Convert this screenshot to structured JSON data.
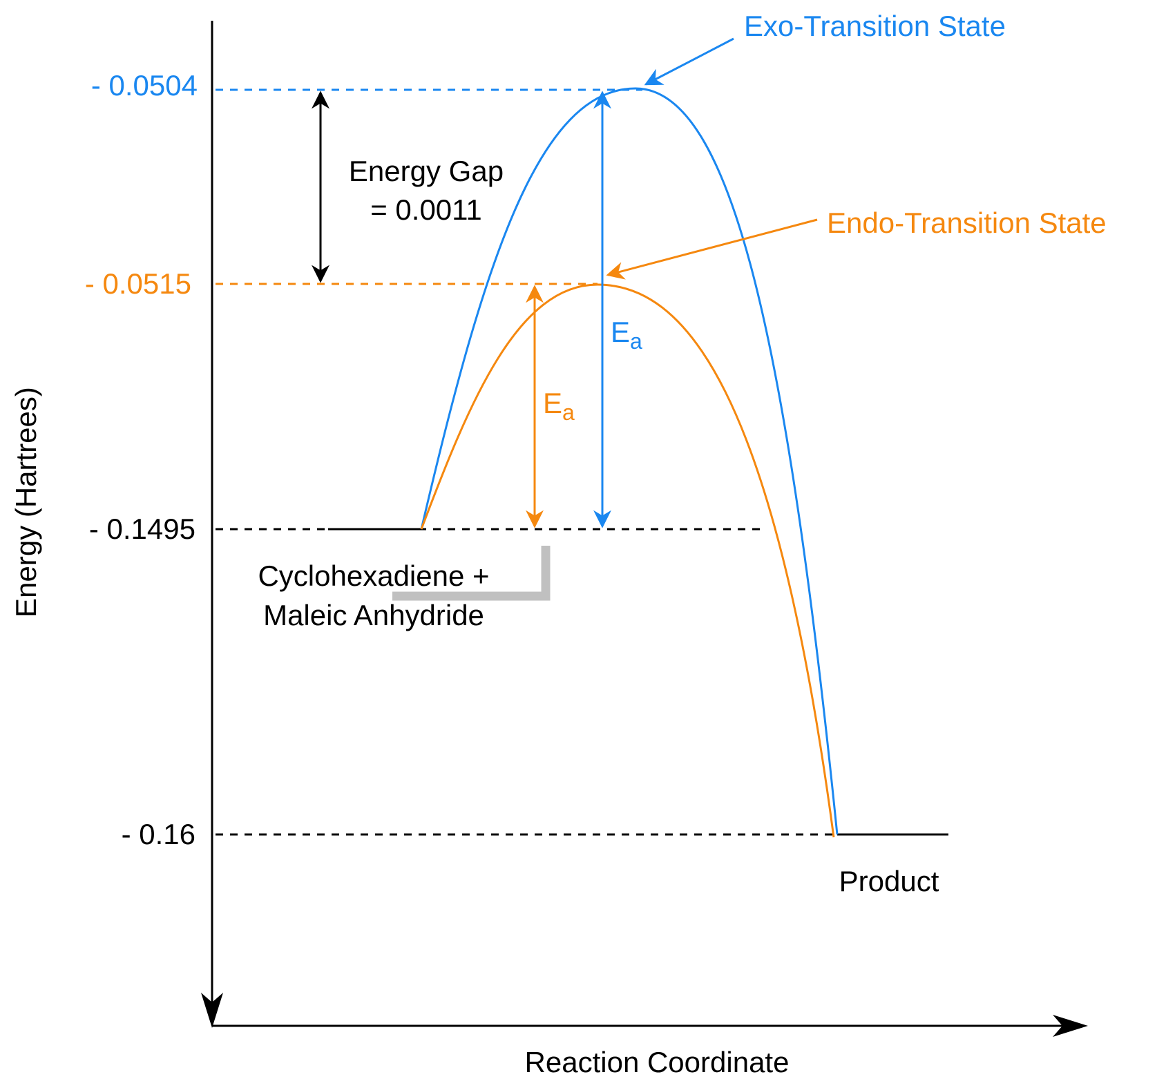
{
  "axes": {
    "y_label": "Energy (Hartrees)",
    "x_label": "Reaction Coordinate"
  },
  "levels": {
    "exo_ts": "- 0.0504",
    "endo_ts": "- 0.0515",
    "reactants": "- 0.1495",
    "product": "- 0.16"
  },
  "labels": {
    "exo_ts": "Exo-Transition State",
    "endo_ts": "Endo-Transition State",
    "gap_line1": "Energy Gap",
    "gap_line2": "= 0.0011",
    "reactants_line1": "Cyclohexadiene +",
    "reactants_line2": "Maleic Anhydride",
    "product": "Product",
    "ea_main": "E",
    "ea_sub": "a"
  },
  "colors": {
    "exo": "#1a87f0",
    "endo": "#f5880f",
    "axis": "#000000",
    "bracket": "#c0c0c0"
  }
}
